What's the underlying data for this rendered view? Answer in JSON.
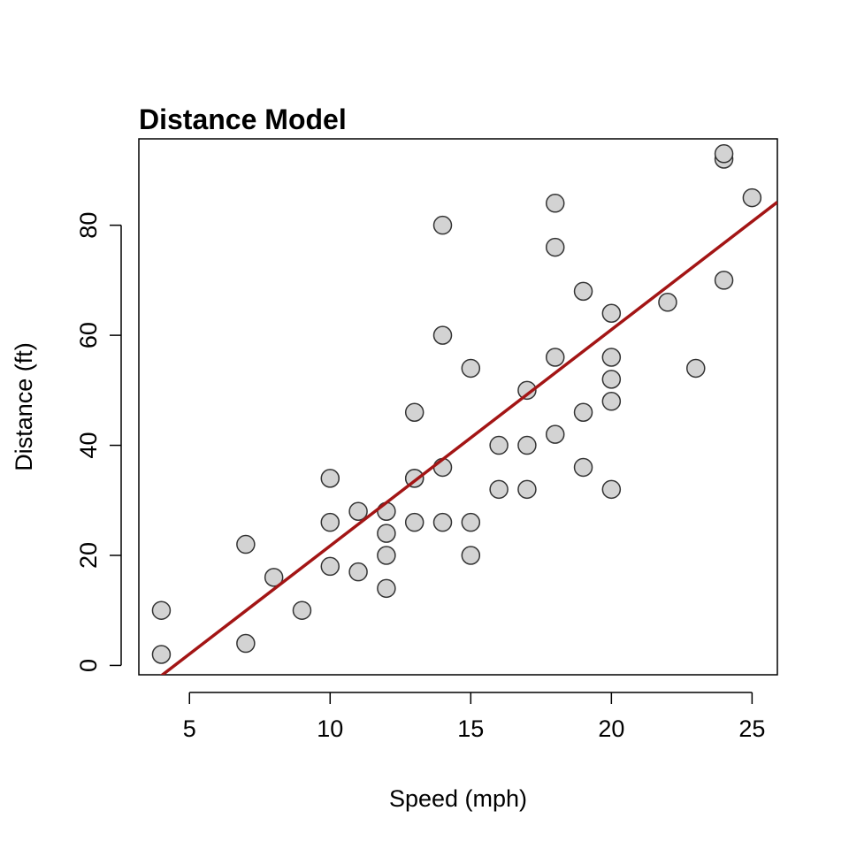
{
  "chart_data": {
    "type": "scatter",
    "title": "Distance Model",
    "xlabel": "Speed (mph)",
    "ylabel": "Distance (ft)",
    "xlim": [
      3.2,
      25.9
    ],
    "ylim": [
      -1.7,
      95.7
    ],
    "x_ticks": [
      5,
      10,
      15,
      20,
      25
    ],
    "y_ticks": [
      0,
      20,
      40,
      60,
      80
    ],
    "grid": false,
    "legend": "none",
    "point_fill": "#d3d3d3",
    "point_stroke": "#333333",
    "line_color": "#a31515",
    "regression": {
      "intercept": -17.58,
      "slope": 3.93
    },
    "points": [
      [
        4,
        2
      ],
      [
        4,
        10
      ],
      [
        7,
        4
      ],
      [
        7,
        22
      ],
      [
        8,
        16
      ],
      [
        9,
        10
      ],
      [
        10,
        18
      ],
      [
        10,
        26
      ],
      [
        10,
        34
      ],
      [
        11,
        17
      ],
      [
        11,
        28
      ],
      [
        12,
        14
      ],
      [
        12,
        20
      ],
      [
        12,
        24
      ],
      [
        12,
        28
      ],
      [
        13,
        26
      ],
      [
        13,
        34
      ],
      [
        13,
        34
      ],
      [
        13,
        46
      ],
      [
        14,
        26
      ],
      [
        14,
        36
      ],
      [
        14,
        60
      ],
      [
        14,
        80
      ],
      [
        15,
        20
      ],
      [
        15,
        26
      ],
      [
        15,
        54
      ],
      [
        16,
        32
      ],
      [
        16,
        40
      ],
      [
        17,
        32
      ],
      [
        17,
        40
      ],
      [
        17,
        50
      ],
      [
        18,
        42
      ],
      [
        18,
        56
      ],
      [
        18,
        76
      ],
      [
        18,
        84
      ],
      [
        19,
        36
      ],
      [
        19,
        46
      ],
      [
        19,
        68
      ],
      [
        20,
        32
      ],
      [
        20,
        48
      ],
      [
        20,
        52
      ],
      [
        20,
        56
      ],
      [
        20,
        64
      ],
      [
        22,
        66
      ],
      [
        23,
        54
      ],
      [
        24,
        70
      ],
      [
        24,
        92
      ],
      [
        24,
        93
      ],
      [
        25,
        85
      ]
    ]
  }
}
